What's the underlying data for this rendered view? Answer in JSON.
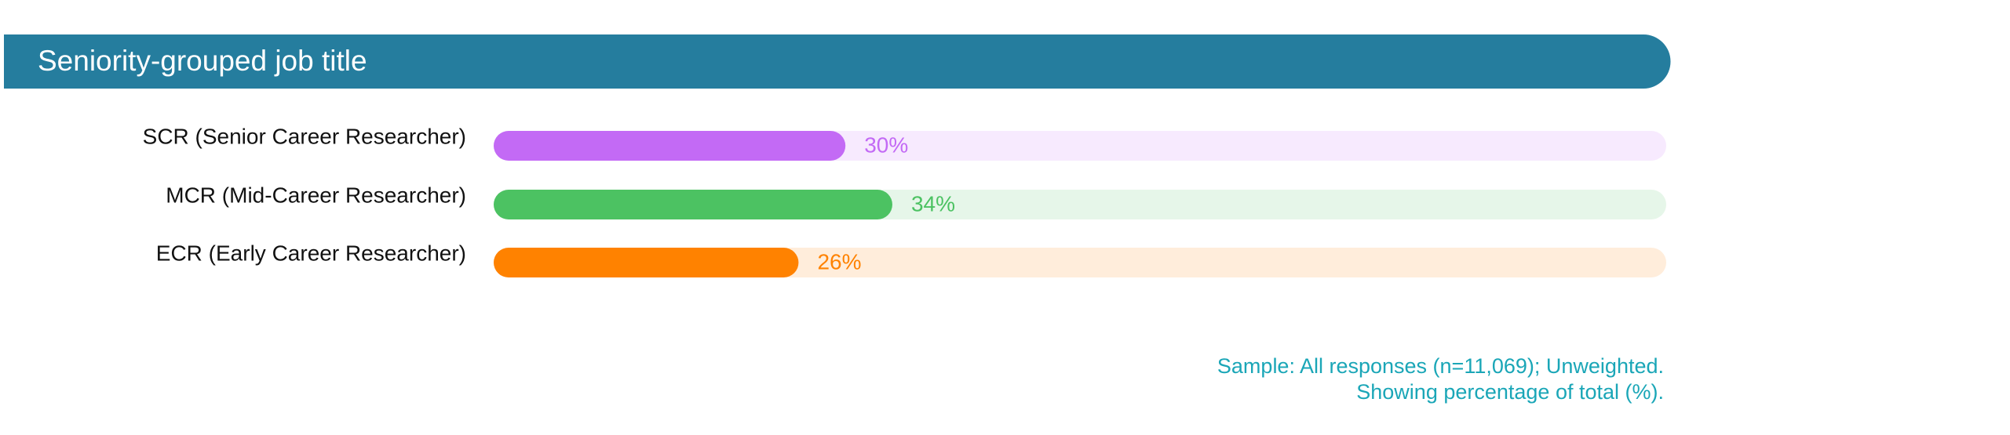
{
  "chart_data": {
    "type": "bar",
    "orientation": "horizontal",
    "title": "Seniority-grouped job title",
    "categories": [
      "SCR (Senior Career Researcher)",
      "MCR (Mid-Career Researcher)",
      "ECR (Early Career Researcher)"
    ],
    "values": [
      30,
      34,
      26
    ],
    "value_labels": [
      "30%",
      "34%",
      "26%"
    ],
    "colors": [
      "#c36af5",
      "#4cc262",
      "#ff8200"
    ],
    "xlim": [
      0,
      100
    ],
    "notes": [
      "Sample: All responses (n=11,069); Unweighted.",
      "Showing percentage of total (%)."
    ]
  }
}
